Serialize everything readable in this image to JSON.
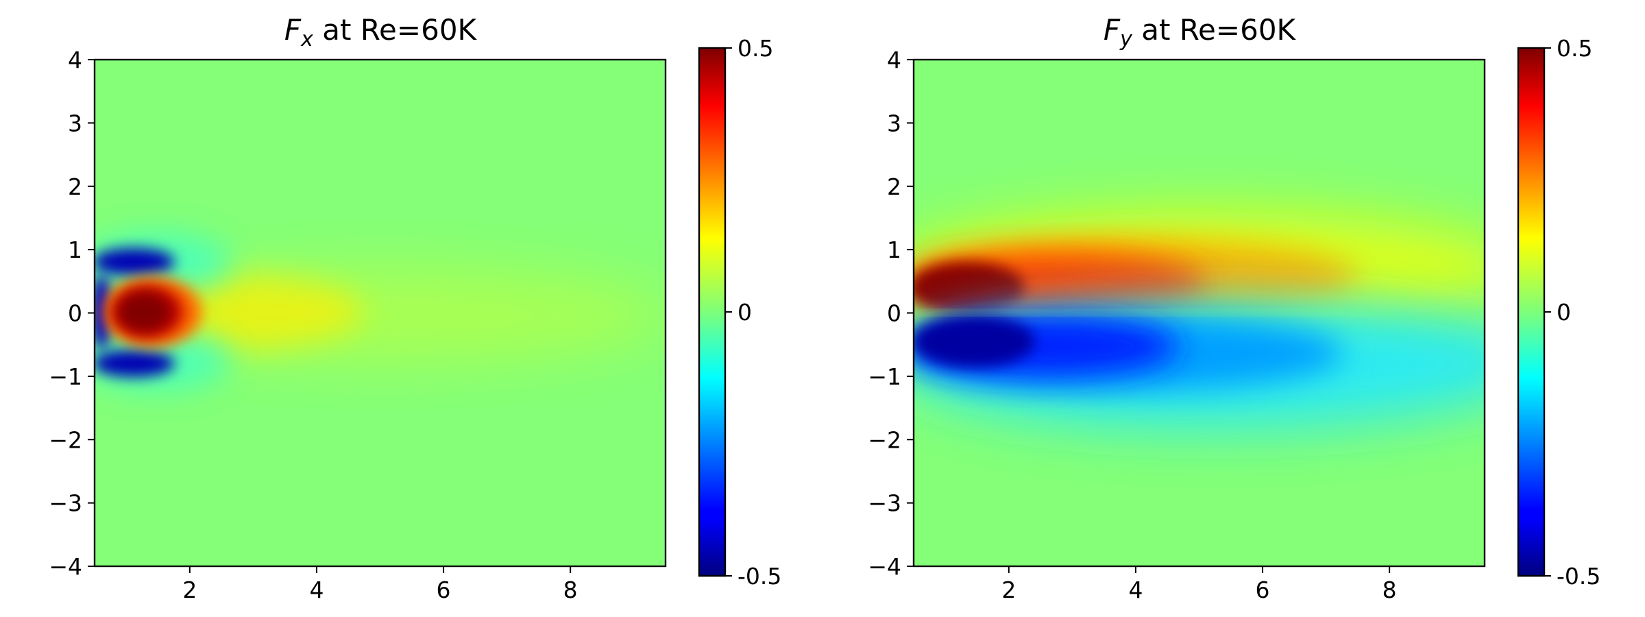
{
  "chart_data": [
    {
      "type": "heatmap",
      "title": "F_x at Re=60K",
      "title_parts": {
        "symbol": "F",
        "subscript": "x",
        "suffix": " at Re=60K"
      },
      "xlabel": "",
      "ylabel": "",
      "xlim": [
        0.5,
        9.5
      ],
      "ylim": [
        -4,
        4
      ],
      "xticks": [
        2,
        4,
        6,
        8
      ],
      "yticks": [
        -4,
        -3,
        -2,
        -1,
        0,
        1,
        2,
        3,
        4
      ],
      "xtick_labels": [
        "2",
        "4",
        "6",
        "8"
      ],
      "ytick_labels": [
        "−4",
        "−3",
        "−2",
        "−1",
        "0",
        "1",
        "2",
        "3",
        "4"
      ],
      "colormap": "jet",
      "clim": [
        -0.5,
        0.5
      ],
      "colorbar_ticks": [
        0.5,
        0,
        -0.5
      ],
      "colorbar_tick_labels": [
        "0.5",
        "0",
        "-0.5"
      ],
      "field_features": [
        {
          "feature": "positive core",
          "x": 1.2,
          "y": 0.0,
          "value": 0.5
        },
        {
          "feature": "negative lobe upper",
          "x": 0.9,
          "y": 0.75,
          "value": -0.5
        },
        {
          "feature": "negative lobe lower",
          "x": 0.9,
          "y": -0.75,
          "value": -0.5
        },
        {
          "feature": "negative edge",
          "x": 0.55,
          "y": 0.0,
          "value": -0.5
        },
        {
          "feature": "weak positive wake",
          "x_range": [
            2,
            9.5
          ],
          "y": 0.0,
          "value": 0.05
        },
        {
          "feature": "background",
          "value": 0.0
        }
      ]
    },
    {
      "type": "heatmap",
      "title": "F_y at Re=60K",
      "title_parts": {
        "symbol": "F",
        "subscript": "y",
        "suffix": " at Re=60K"
      },
      "xlabel": "",
      "ylabel": "",
      "xlim": [
        0.5,
        9.5
      ],
      "ylim": [
        -4,
        4
      ],
      "xticks": [
        2,
        4,
        6,
        8
      ],
      "yticks": [
        -4,
        -3,
        -2,
        -1,
        0,
        1,
        2,
        3,
        4
      ],
      "xtick_labels": [
        "2",
        "4",
        "6",
        "8"
      ],
      "ytick_labels": [
        "−4",
        "−3",
        "−2",
        "−1",
        "0",
        "1",
        "2",
        "3",
        "4"
      ],
      "colormap": "jet",
      "clim": [
        -0.5,
        0.5
      ],
      "colorbar_ticks": [
        0.5,
        0,
        -0.5
      ],
      "colorbar_tick_labels": [
        "0.5",
        "0",
        "-0.5"
      ],
      "field_features": [
        {
          "feature": "positive band",
          "x_range": [
            0.5,
            9.0
          ],
          "y_range": [
            0,
            1
          ],
          "peak_value": 0.5
        },
        {
          "feature": "negative band",
          "x_range": [
            0.5,
            9.5
          ],
          "y_range": [
            -1.2,
            0
          ],
          "peak_value": -0.5
        },
        {
          "feature": "background",
          "value": 0.0
        }
      ]
    }
  ]
}
